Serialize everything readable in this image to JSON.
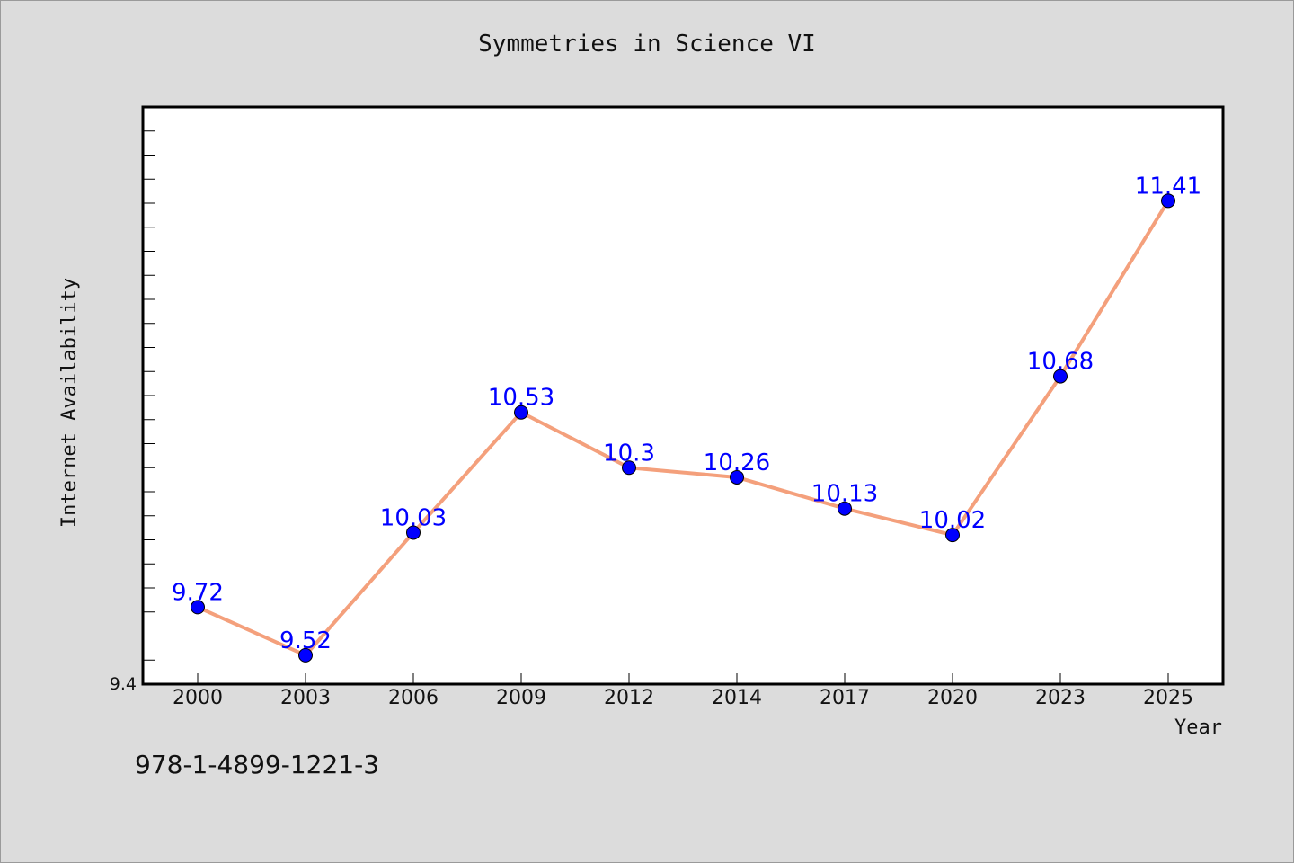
{
  "chart_data": {
    "type": "line",
    "title": "Symmetries in Science VI",
    "xlabel": "Year",
    "ylabel": "Internet Availability",
    "categories": [
      "2000",
      "2003",
      "2006",
      "2009",
      "2012",
      "2014",
      "2017",
      "2020",
      "2023",
      "2025"
    ],
    "series": [
      {
        "values": [
          9.72,
          9.52,
          10.03,
          10.53,
          10.3,
          10.26,
          10.13,
          10.02,
          10.68,
          11.41
        ]
      }
    ],
    "y_tick_labels": [
      "9.4"
    ],
    "ylim": [
      9.4,
      11.8
    ],
    "grid": false,
    "line_color": "#f4a07c",
    "marker_color": "#0000ff",
    "label_color": "#0000ff"
  },
  "footer": {
    "isbn": "978-1-4899-1221-3"
  }
}
